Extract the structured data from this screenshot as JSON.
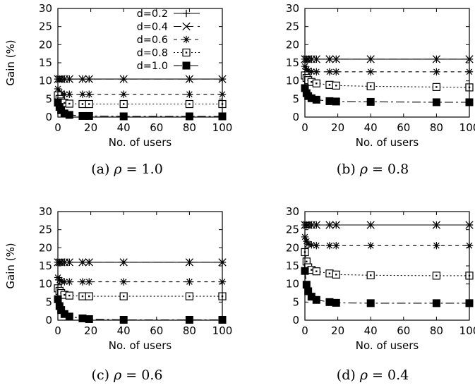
{
  "chart_data": [
    {
      "type": "line",
      "caption_prefix": "(a) ",
      "caption_symbol": "ρ",
      "caption_value": " = 1.0",
      "xlabel": "No. of users",
      "ylabel": "Gain (%)",
      "xlim": [
        0,
        100
      ],
      "ylim": [
        0,
        30
      ],
      "xticks": [
        "0",
        "20",
        "40",
        "60",
        "80",
        "100"
      ],
      "yticks": [
        "0",
        "5",
        "10",
        "15",
        "20",
        "25",
        "30"
      ],
      "legend": {
        "placement": "top-right",
        "entries": [
          "d=0.2",
          "d=0.4",
          "d=0.6",
          "d=0.8",
          "d=1.0"
        ]
      },
      "x": [
        0,
        1,
        2,
        4,
        7,
        15,
        19,
        40,
        80,
        100
      ],
      "series": [
        {
          "name": "d=0.2",
          "values": [
            10.5,
            10.5,
            10.5,
            10.5,
            10.5,
            10.5,
            10.5,
            10.5,
            10.5,
            10.5
          ]
        },
        {
          "name": "d=0.4",
          "values": [
            10.5,
            10.5,
            10.5,
            10.5,
            10.5,
            10.5,
            10.5,
            10.5,
            10.5,
            10.5
          ]
        },
        {
          "name": "d=0.6",
          "values": [
            7.8,
            6.9,
            6.5,
            6.3,
            6.3,
            6.3,
            6.3,
            6.3,
            6.3,
            6.3
          ]
        },
        {
          "name": "d=0.8",
          "values": [
            6.0,
            5.0,
            4.3,
            3.9,
            3.7,
            3.6,
            3.6,
            3.6,
            3.6,
            3.6
          ]
        },
        {
          "name": "d=1.0",
          "values": [
            4.0,
            2.8,
            1.9,
            1.0,
            0.6,
            0.3,
            0.3,
            0.2,
            0.2,
            0.2
          ]
        }
      ]
    },
    {
      "type": "line",
      "caption_prefix": "(b) ",
      "caption_symbol": "ρ",
      "caption_value": " = 0.8",
      "xlabel": "No. of users",
      "ylabel": "",
      "xlim": [
        0,
        100
      ],
      "ylim": [
        0,
        30
      ],
      "xticks": [
        "0",
        "20",
        "40",
        "60",
        "80",
        "100"
      ],
      "yticks": [
        "0",
        "5",
        "10",
        "15",
        "20",
        "25",
        "30"
      ],
      "x": [
        0,
        1,
        2,
        4,
        7,
        15,
        19,
        40,
        80,
        100
      ],
      "series": [
        {
          "name": "d=0.2",
          "values": [
            16.0,
            16.0,
            16.0,
            16.0,
            16.0,
            16.0,
            16.0,
            16.0,
            16.0,
            16.0
          ]
        },
        {
          "name": "d=0.4",
          "values": [
            16.0,
            16.0,
            16.0,
            16.0,
            16.0,
            16.0,
            16.0,
            16.0,
            16.0,
            16.0
          ]
        },
        {
          "name": "d=0.6",
          "values": [
            14.0,
            13.2,
            12.8,
            12.6,
            12.5,
            12.5,
            12.5,
            12.5,
            12.5,
            12.5
          ]
        },
        {
          "name": "d=0.8",
          "values": [
            11.5,
            10.8,
            10.2,
            9.7,
            9.3,
            8.9,
            8.7,
            8.5,
            8.3,
            8.2
          ]
        },
        {
          "name": "d=1.0",
          "values": [
            8.0,
            6.6,
            5.8,
            5.2,
            4.8,
            4.4,
            4.3,
            4.2,
            4.1,
            4.1
          ]
        }
      ]
    },
    {
      "type": "line",
      "caption_prefix": "(c) ",
      "caption_symbol": "ρ",
      "caption_value": " = 0.6",
      "xlabel": "No. of users",
      "ylabel": "Gain (%)",
      "xlim": [
        0,
        100
      ],
      "ylim": [
        0,
        30
      ],
      "xticks": [
        "0",
        "20",
        "40",
        "60",
        "80",
        "100"
      ],
      "yticks": [
        "0",
        "5",
        "10",
        "15",
        "20",
        "25",
        "30"
      ],
      "x": [
        0,
        1,
        2,
        4,
        7,
        15,
        19,
        40,
        80,
        100
      ],
      "series": [
        {
          "name": "d=0.2",
          "values": [
            16.0,
            16.0,
            16.0,
            16.0,
            16.0,
            16.0,
            16.0,
            16.0,
            16.0,
            16.0
          ]
        },
        {
          "name": "d=0.4",
          "values": [
            16.0,
            16.0,
            16.0,
            16.0,
            16.0,
            16.0,
            16.0,
            16.0,
            16.0,
            16.0
          ]
        },
        {
          "name": "d=0.6",
          "values": [
            11.8,
            11.1,
            10.8,
            10.6,
            10.6,
            10.6,
            10.6,
            10.6,
            10.6,
            10.6
          ]
        },
        {
          "name": "d=0.8",
          "values": [
            8.8,
            8.1,
            7.5,
            7.0,
            6.8,
            6.6,
            6.6,
            6.6,
            6.6,
            6.6
          ]
        },
        {
          "name": "d=1.0",
          "values": [
            5.8,
            3.9,
            2.8,
            1.7,
            1.0,
            0.5,
            0.3,
            0.1,
            0.1,
            0.1
          ]
        }
      ]
    },
    {
      "type": "line",
      "caption_prefix": "(d) ",
      "caption_symbol": "ρ",
      "caption_value": " = 0.4",
      "xlabel": "No. of users",
      "ylabel": "",
      "xlim": [
        0,
        100
      ],
      "ylim": [
        0,
        30
      ],
      "xticks": [
        "0",
        "20",
        "40",
        "60",
        "80",
        "100"
      ],
      "yticks": [
        "0",
        "5",
        "10",
        "15",
        "20",
        "25",
        "30"
      ],
      "x": [
        0,
        1,
        2,
        4,
        7,
        15,
        19,
        40,
        80,
        100
      ],
      "series": [
        {
          "name": "d=0.2",
          "values": [
            26.3,
            26.3,
            26.3,
            26.3,
            26.3,
            26.3,
            26.3,
            26.3,
            26.3,
            26.3
          ]
        },
        {
          "name": "d=0.4",
          "values": [
            26.3,
            26.3,
            26.3,
            26.3,
            26.3,
            26.3,
            26.3,
            26.3,
            26.3,
            26.3
          ]
        },
        {
          "name": "d=0.6",
          "values": [
            23.0,
            21.8,
            21.0,
            20.8,
            20.6,
            20.6,
            20.6,
            20.6,
            20.6,
            20.6
          ]
        },
        {
          "name": "d=0.8",
          "values": [
            18.8,
            16.2,
            14.6,
            13.9,
            13.5,
            12.9,
            12.6,
            12.4,
            12.3,
            12.3
          ]
        },
        {
          "name": "d=1.0",
          "values": [
            13.6,
            9.8,
            8.0,
            6.5,
            5.6,
            5.0,
            4.8,
            4.7,
            4.7,
            4.7
          ]
        }
      ]
    }
  ]
}
